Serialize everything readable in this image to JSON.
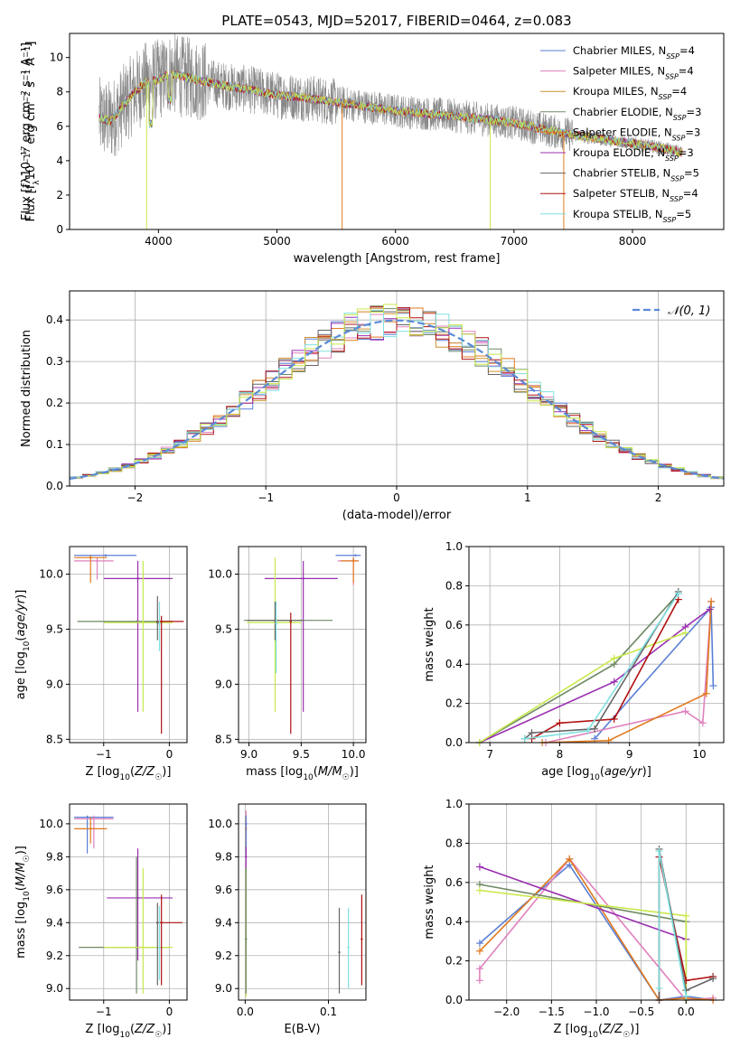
{
  "title": "PLATE=0543, MJD=52017, FIBERID=0464, z=0.083",
  "colors": {
    "Chabrier MILES": "#5b7fd6",
    "Salpeter MILES": "#e080bd",
    "Kroupa MILES": "#d09030",
    "Chabrier ELODIE": "#6e8a64",
    "Salpeter ELODIE": "#e07a1f",
    "Kroupa ELODIE": "#9a2fb0",
    "Chabrier STELIB": "#666666",
    "Salpeter STELIB": "#b01010",
    "Kroupa STELIB": "#80e0e0",
    "extra_lime": "#c8e84a",
    "normal_curve": "#5b8ad8"
  },
  "chart_data": [
    {
      "id": "spectrum",
      "type": "line",
      "title": "PLATE=0543, MJD=52017, FIBERID=0464, z=0.083",
      "xlabel": "wavelength [Angstrom, rest frame]",
      "ylabel": "Flux [fλ10⁻¹⁷ erg cm⁻² s⁻¹ A⁻¹]",
      "xlim": [
        3250,
        8770
      ],
      "ylim": [
        0,
        11.4
      ],
      "xticks": [
        4000,
        5000,
        6000,
        7000,
        8000
      ],
      "yticks": [
        0,
        2,
        4,
        6,
        8,
        10
      ],
      "continuum": {
        "x": [
          3500,
          3600,
          3700,
          3800,
          3900,
          4000,
          4100,
          4200,
          4400,
          4600,
          4800,
          5000,
          5200,
          5500,
          5800,
          6000,
          6500,
          7000,
          7400,
          7800,
          8200,
          8400
        ],
        "y": [
          6.5,
          6.3,
          7.2,
          8.0,
          8.6,
          8.7,
          9.1,
          8.9,
          8.6,
          8.3,
          8.1,
          7.8,
          7.7,
          7.4,
          7.1,
          6.9,
          6.6,
          6.2,
          5.6,
          5.2,
          4.8,
          4.5
        ]
      },
      "legend": [
        {
          "label": "Chabrier MILES, N",
          "sub": "SSP",
          "suffix": "=4"
        },
        {
          "label": "Salpeter MILES, N",
          "sub": "SSP",
          "suffix": "=4"
        },
        {
          "label": "Kroupa MILES, N",
          "sub": "SSP",
          "suffix": "=4"
        },
        {
          "label": "Chabrier ELODIE, N",
          "sub": "SSP",
          "suffix": "=3"
        },
        {
          "label": "Salpeter ELODIE, N",
          "sub": "SSP",
          "suffix": "=3"
        },
        {
          "label": "Kroupa ELODIE, N",
          "sub": "SSP",
          "suffix": "=3"
        },
        {
          "label": "Chabrier STELIB, N",
          "sub": "SSP",
          "suffix": "=5"
        },
        {
          "label": "Salpeter STELIB, N",
          "sub": "SSP",
          "suffix": "=4"
        },
        {
          "label": "Kroupa STELIB, N",
          "sub": "SSP",
          "suffix": "=5"
        }
      ],
      "legend_loc": "upper right"
    },
    {
      "id": "residuals",
      "type": "line",
      "xlabel": "(data-model)/error",
      "ylabel": "Normed distribution",
      "xlim": [
        -2.5,
        2.5
      ],
      "ylim": [
        0,
        0.47
      ],
      "xticks": [
        -2,
        -1,
        0,
        1,
        2
      ],
      "yticks": [
        0.0,
        0.1,
        0.2,
        0.3,
        0.4
      ],
      "grid": true,
      "curve_label": "𝒩(0, 1)",
      "legend_loc": "upper right"
    },
    {
      "id": "age-vs-Z",
      "type": "scatter",
      "xlabel": "Z [log10(Z/Z☉)]",
      "ylabel": "age  [log10(age/yr)]",
      "xlim": [
        -1.52,
        0.27
      ],
      "ylim": [
        8.47,
        10.25
      ],
      "xticks": [
        -1,
        0
      ],
      "yticks": [
        8.5,
        9.0,
        9.5,
        10.0
      ],
      "grid": true,
      "points": [
        {
          "c": "#5b7fd6",
          "x": -0.97,
          "y": 10.17,
          "xl": -1.45,
          "xh": -0.5
        },
        {
          "c": "#e080bd",
          "x": -1.1,
          "y": 10.12,
          "xl": -1.45,
          "xh": -0.85,
          "yl": 9.95,
          "yh": 10.15
        },
        {
          "c": "#e07a1f",
          "x": -1.2,
          "y": 10.15,
          "xl": -1.45,
          "xh": -0.95,
          "yl": 9.92,
          "yh": 10.17
        },
        {
          "c": "#9a2fb0",
          "x": -0.48,
          "y": 9.96,
          "xl": -1.0,
          "xh": 0.05,
          "yl": 8.75,
          "yh": 10.12
        },
        {
          "c": "#6e8a64",
          "x": -0.5,
          "y": 9.57,
          "xl": -1.4,
          "xh": 0.05
        },
        {
          "c": "#c8e84a",
          "x": -0.4,
          "y": 9.56,
          "xl": -1.0,
          "xh": 0.05,
          "yl": 8.75,
          "yh": 10.12
        },
        {
          "c": "#b01010",
          "x": -0.12,
          "y": 9.57,
          "xl": -0.2,
          "xh": 0.22,
          "yl": 8.55,
          "yh": 9.62
        },
        {
          "c": "#666666",
          "x": -0.18,
          "y": 9.56,
          "yl": 9.4,
          "yh": 9.8
        },
        {
          "c": "#80e0e0",
          "x": -0.15,
          "y": 9.55,
          "yl": 9.3,
          "yh": 9.75
        }
      ]
    },
    {
      "id": "age-vs-mass",
      "type": "scatter",
      "xlabel": "mass [log10(M/M☉)]",
      "ylabel": "",
      "xlim": [
        8.9,
        10.12
      ],
      "ylim": [
        8.47,
        10.25
      ],
      "xticks": [
        9.0,
        9.5,
        10.0
      ],
      "yticks": [
        8.5,
        9.0,
        9.5,
        10.0
      ],
      "grid": true,
      "points": [
        {
          "c": "#5b7fd6",
          "x": 10.02,
          "y": 10.17,
          "xl": 9.83,
          "xh": 10.07
        },
        {
          "c": "#e080bd",
          "x": 10.0,
          "y": 10.12,
          "xl": 9.85,
          "xh": 10.05,
          "yl": 9.9,
          "yh": 10.15
        },
        {
          "c": "#e07a1f",
          "x": 10.0,
          "y": 10.12,
          "xl": 9.88,
          "xh": 10.05,
          "yl": 9.92,
          "yh": 10.15
        },
        {
          "c": "#9a2fb0",
          "x": 9.52,
          "y": 9.96,
          "xl": 9.15,
          "xh": 9.85,
          "yl": 8.75,
          "yh": 10.12
        },
        {
          "c": "#6e8a64",
          "x": 9.25,
          "y": 9.58,
          "xl": 8.95,
          "xh": 9.8
        },
        {
          "c": "#c8e84a",
          "x": 9.25,
          "y": 9.56,
          "xl": 8.98,
          "xh": 9.5,
          "yl": 8.75,
          "yh": 10.15
        },
        {
          "c": "#b01010",
          "x": 9.4,
          "y": 9.57,
          "yl": 8.55,
          "yh": 9.65
        },
        {
          "c": "#666666",
          "x": 9.25,
          "y": 9.58,
          "xl": 8.98,
          "xh": 9.52,
          "yl": 9.4,
          "yh": 9.75
        },
        {
          "c": "#80e0e0",
          "x": 9.26,
          "y": 9.55,
          "yl": 9.1,
          "yh": 9.75
        }
      ]
    },
    {
      "id": "mass-weight-vs-age",
      "type": "line",
      "xlabel": "age  [log10(age/yr)]",
      "ylabel": "mass weight",
      "xlim": [
        6.7,
        10.35
      ],
      "ylim": [
        0,
        1.0
      ],
      "xticks": [
        7,
        8,
        9,
        10
      ],
      "yticks": [
        0.0,
        0.2,
        0.4,
        0.6,
        0.8,
        1.0
      ],
      "grid": true,
      "series": [
        {
          "c": "#5b7fd6",
          "x": [
            8.5,
            10.17,
            10.2
          ],
          "y": [
            0.02,
            0.69,
            0.29
          ]
        },
        {
          "c": "#e080bd",
          "x": [
            7.8,
            9.8,
            10.05,
            10.17
          ],
          "y": [
            0.0,
            0.16,
            0.1,
            0.72
          ]
        },
        {
          "c": "#e07a1f",
          "x": [
            7.75,
            8.7,
            10.1,
            10.17
          ],
          "y": [
            0.0,
            0.01,
            0.25,
            0.72
          ]
        },
        {
          "c": "#6e8a64",
          "x": [
            6.85,
            8.78,
            9.7
          ],
          "y": [
            0.0,
            0.4,
            0.76
          ]
        },
        {
          "c": "#9a2fb0",
          "x": [
            6.85,
            8.78,
            9.8,
            10.15
          ],
          "y": [
            0.0,
            0.31,
            0.59,
            0.68
          ]
        },
        {
          "c": "#c8e84a",
          "x": [
            6.85,
            8.78,
            9.8
          ],
          "y": [
            0.0,
            0.43,
            0.56
          ]
        },
        {
          "c": "#b01010",
          "x": [
            7.6,
            8.0,
            8.78,
            9.7
          ],
          "y": [
            0.02,
            0.1,
            0.12,
            0.73
          ]
        },
        {
          "c": "#666666",
          "x": [
            7.5,
            7.6,
            8.5,
            9.7
          ],
          "y": [
            0.02,
            0.05,
            0.07,
            0.77
          ]
        },
        {
          "c": "#80e0e0",
          "x": [
            7.5,
            8.4,
            9.7
          ],
          "y": [
            0.02,
            0.06,
            0.76
          ]
        }
      ]
    },
    {
      "id": "mass-vs-Z",
      "type": "scatter",
      "xlabel": "Z [log10(Z/Z☉)]",
      "ylabel": "mass [log10(M/M☉)]",
      "xlim": [
        -1.52,
        0.27
      ],
      "ylim": [
        8.93,
        10.12
      ],
      "xticks": [
        -1,
        0
      ],
      "yticks": [
        9.0,
        9.2,
        9.4,
        9.6,
        9.8,
        10.0
      ],
      "grid": true,
      "points": [
        {
          "c": "#5b7fd6",
          "x": -1.25,
          "y": 10.04,
          "xl": -1.45,
          "xh": -0.85,
          "yl": 9.82,
          "yh": 10.05
        },
        {
          "c": "#e080bd",
          "x": -1.15,
          "y": 10.03,
          "xl": -1.45,
          "xh": -0.85,
          "yl": 9.85,
          "yh": 10.05
        },
        {
          "c": "#e07a1f",
          "x": -1.2,
          "y": 9.97,
          "xl": -1.45,
          "xh": -0.95,
          "yl": 9.88,
          "yh": 10.04
        },
        {
          "c": "#9a2fb0",
          "x": -0.48,
          "y": 9.55,
          "xl": -0.95,
          "xh": 0.05,
          "yl": 9.17,
          "yh": 9.85
        },
        {
          "c": "#6e8a64",
          "x": -0.5,
          "y": 9.25,
          "xl": -1.38,
          "xh": 0.0,
          "yl": 8.97,
          "yh": 9.8
        },
        {
          "c": "#c8e84a",
          "x": -0.4,
          "y": 9.25,
          "xl": -1.0,
          "xh": 0.05,
          "yl": 8.97,
          "yh": 9.73
        },
        {
          "c": "#b01010",
          "x": -0.12,
          "y": 9.4,
          "xl": -0.2,
          "xh": 0.2,
          "yl": 9.02,
          "yh": 9.57
        },
        {
          "c": "#666666",
          "x": -0.18,
          "y": 9.4,
          "yl": 9.02,
          "yh": 9.52
        },
        {
          "c": "#80e0e0",
          "x": -0.15,
          "y": 9.25,
          "yl": 9.05,
          "yh": 9.5
        }
      ]
    },
    {
      "id": "mass-vs-EBV",
      "type": "scatter",
      "xlabel": "E(B-V)",
      "ylabel": "",
      "xlim": [
        -0.008,
        0.145
      ],
      "ylim": [
        8.93,
        10.12
      ],
      "xticks": [
        0.0,
        0.1
      ],
      "yticks": [
        9.0,
        9.2,
        9.4,
        9.6,
        9.8,
        10.0
      ],
      "grid": true,
      "points": [
        {
          "c": "#e080bd",
          "x": 0.001,
          "y": 10.0,
          "yl": 9.85,
          "yh": 10.08
        },
        {
          "c": "#e07a1f",
          "x": 0.001,
          "y": 9.97,
          "yl": 9.85,
          "yh": 10.05
        },
        {
          "c": "#5b7fd6",
          "x": 0.001,
          "y": 10.0,
          "yl": 9.82,
          "yh": 10.05
        },
        {
          "c": "#9a2fb0",
          "x": 0.001,
          "y": 9.8,
          "yl": 9.72,
          "yh": 9.86
        },
        {
          "c": "#c8e84a",
          "x": 0.001,
          "y": 9.3,
          "yl": 8.95,
          "yh": 9.73
        },
        {
          "c": "#6e8a64",
          "x": 0.001,
          "y": 9.3,
          "yl": 8.97,
          "yh": 9.73
        },
        {
          "c": "#666666",
          "x": 0.113,
          "y": 9.22,
          "yl": 8.97,
          "yh": 9.49
        },
        {
          "c": "#80e0e0",
          "x": 0.124,
          "y": 9.25,
          "yl": 9.0,
          "yh": 9.49
        },
        {
          "c": "#b01010",
          "x": 0.14,
          "y": 9.3,
          "yl": 9.02,
          "yh": 9.57
        }
      ]
    },
    {
      "id": "mass-weight-vs-Z",
      "type": "line",
      "xlabel": "Z [log10(Z/Z☉)]",
      "ylabel": "mass weight",
      "xlim": [
        -2.42,
        0.42
      ],
      "ylim": [
        0,
        1.0
      ],
      "xticks": [
        -2.0,
        -1.5,
        -1.0,
        -0.5,
        0.0
      ],
      "yticks": [
        0.0,
        0.2,
        0.4,
        0.6,
        0.8,
        1.0
      ],
      "grid": true,
      "series": [
        {
          "c": "#5b7fd6",
          "x": [
            -2.3,
            -1.3,
            -0.3,
            0.0,
            0.3
          ],
          "y": [
            0.29,
            0.69,
            0.0,
            0.02,
            0.0
          ]
        },
        {
          "c": "#e080bd",
          "x": [
            -2.3,
            -2.3,
            -1.3,
            0.0,
            0.3
          ],
          "y": [
            0.1,
            0.16,
            0.72,
            0.0,
            0.01
          ]
        },
        {
          "c": "#e07a1f",
          "x": [
            -2.3,
            -1.3,
            -0.3,
            0.0,
            0.3
          ],
          "y": [
            0.25,
            0.72,
            0.0,
            0.01,
            0.0
          ]
        },
        {
          "c": "#6e8a64",
          "x": [
            -2.3,
            0.0,
            0.0
          ],
          "y": [
            0.59,
            0.4,
            0.0
          ]
        },
        {
          "c": "#9a2fb0",
          "x": [
            -2.3,
            0.0
          ],
          "y": [
            0.68,
            0.31
          ]
        },
        {
          "c": "#c8e84a",
          "x": [
            -2.3,
            0.0,
            0.0
          ],
          "y": [
            0.56,
            0.43,
            0.0
          ]
        },
        {
          "c": "#b01010",
          "x": [
            -0.3,
            -0.3,
            0.0,
            0.3
          ],
          "y": [
            0.0,
            0.73,
            0.1,
            0.12
          ]
        },
        {
          "c": "#666666",
          "x": [
            -0.3,
            -0.3,
            0.0,
            0.3
          ],
          "y": [
            0.0,
            0.77,
            0.05,
            0.11
          ]
        },
        {
          "c": "#80e0e0",
          "x": [
            -0.3,
            -0.3,
            0.0
          ],
          "y": [
            0.06,
            0.76,
            0.02
          ]
        }
      ]
    }
  ]
}
